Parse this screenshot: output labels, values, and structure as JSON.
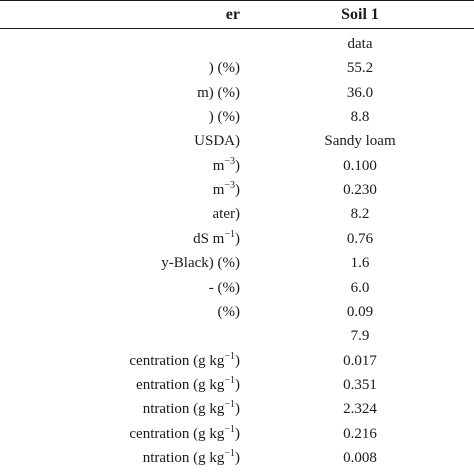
{
  "header": {
    "parameter_label_partial": "er",
    "column_label": "Soil 1"
  },
  "rows": [
    {
      "param": "",
      "unit_sup": "",
      "unit_suffix": "",
      "value": "data"
    },
    {
      "param": ") (%)",
      "unit_sup": "",
      "unit_suffix": "",
      "value": "55.2"
    },
    {
      "param": "m) (%)",
      "unit_sup": "",
      "unit_suffix": "",
      "value": "36.0"
    },
    {
      "param": ") (%)",
      "unit_sup": "",
      "unit_suffix": "",
      "value": "8.8"
    },
    {
      "param": "USDA)",
      "unit_sup": "",
      "unit_suffix": "",
      "value": "Sandy loam"
    },
    {
      "param": " m",
      "unit_sup": "−3",
      "unit_suffix": ")",
      "value": "0.100"
    },
    {
      "param": " m",
      "unit_sup": "−3",
      "unit_suffix": ")",
      "value": "0.230"
    },
    {
      "param": "ater)",
      "unit_sup": "",
      "unit_suffix": "",
      "value": "8.2"
    },
    {
      "param": "dS m",
      "unit_sup": "−1",
      "unit_suffix": ")",
      "value": "0.76"
    },
    {
      "param": "y-Black) (%)",
      "unit_sup": "",
      "unit_suffix": "",
      "value": "1.6"
    },
    {
      "param": "- (%)",
      "unit_sup": "",
      "unit_suffix": "",
      "value": "6.0"
    },
    {
      "param": "(%)",
      "unit_sup": "",
      "unit_suffix": "",
      "value": "0.09"
    },
    {
      "param": "",
      "unit_sup": "",
      "unit_suffix": "",
      "value": "7.9"
    },
    {
      "param": "centration (g kg",
      "unit_sup": "−1",
      "unit_suffix": ")",
      "value": "0.017"
    },
    {
      "param": "entration (g kg",
      "unit_sup": "−1",
      "unit_suffix": ")",
      "value": "0.351"
    },
    {
      "param": "ntration (g kg",
      "unit_sup": "−1",
      "unit_suffix": ")",
      "value": "2.324"
    },
    {
      "param": "centration (g kg",
      "unit_sup": "−1",
      "unit_suffix": ")",
      "value": "0.216"
    },
    {
      "param": "ntration (g kg",
      "unit_sup": "−1",
      "unit_suffix": ")",
      "value": "0.008"
    }
  ]
}
